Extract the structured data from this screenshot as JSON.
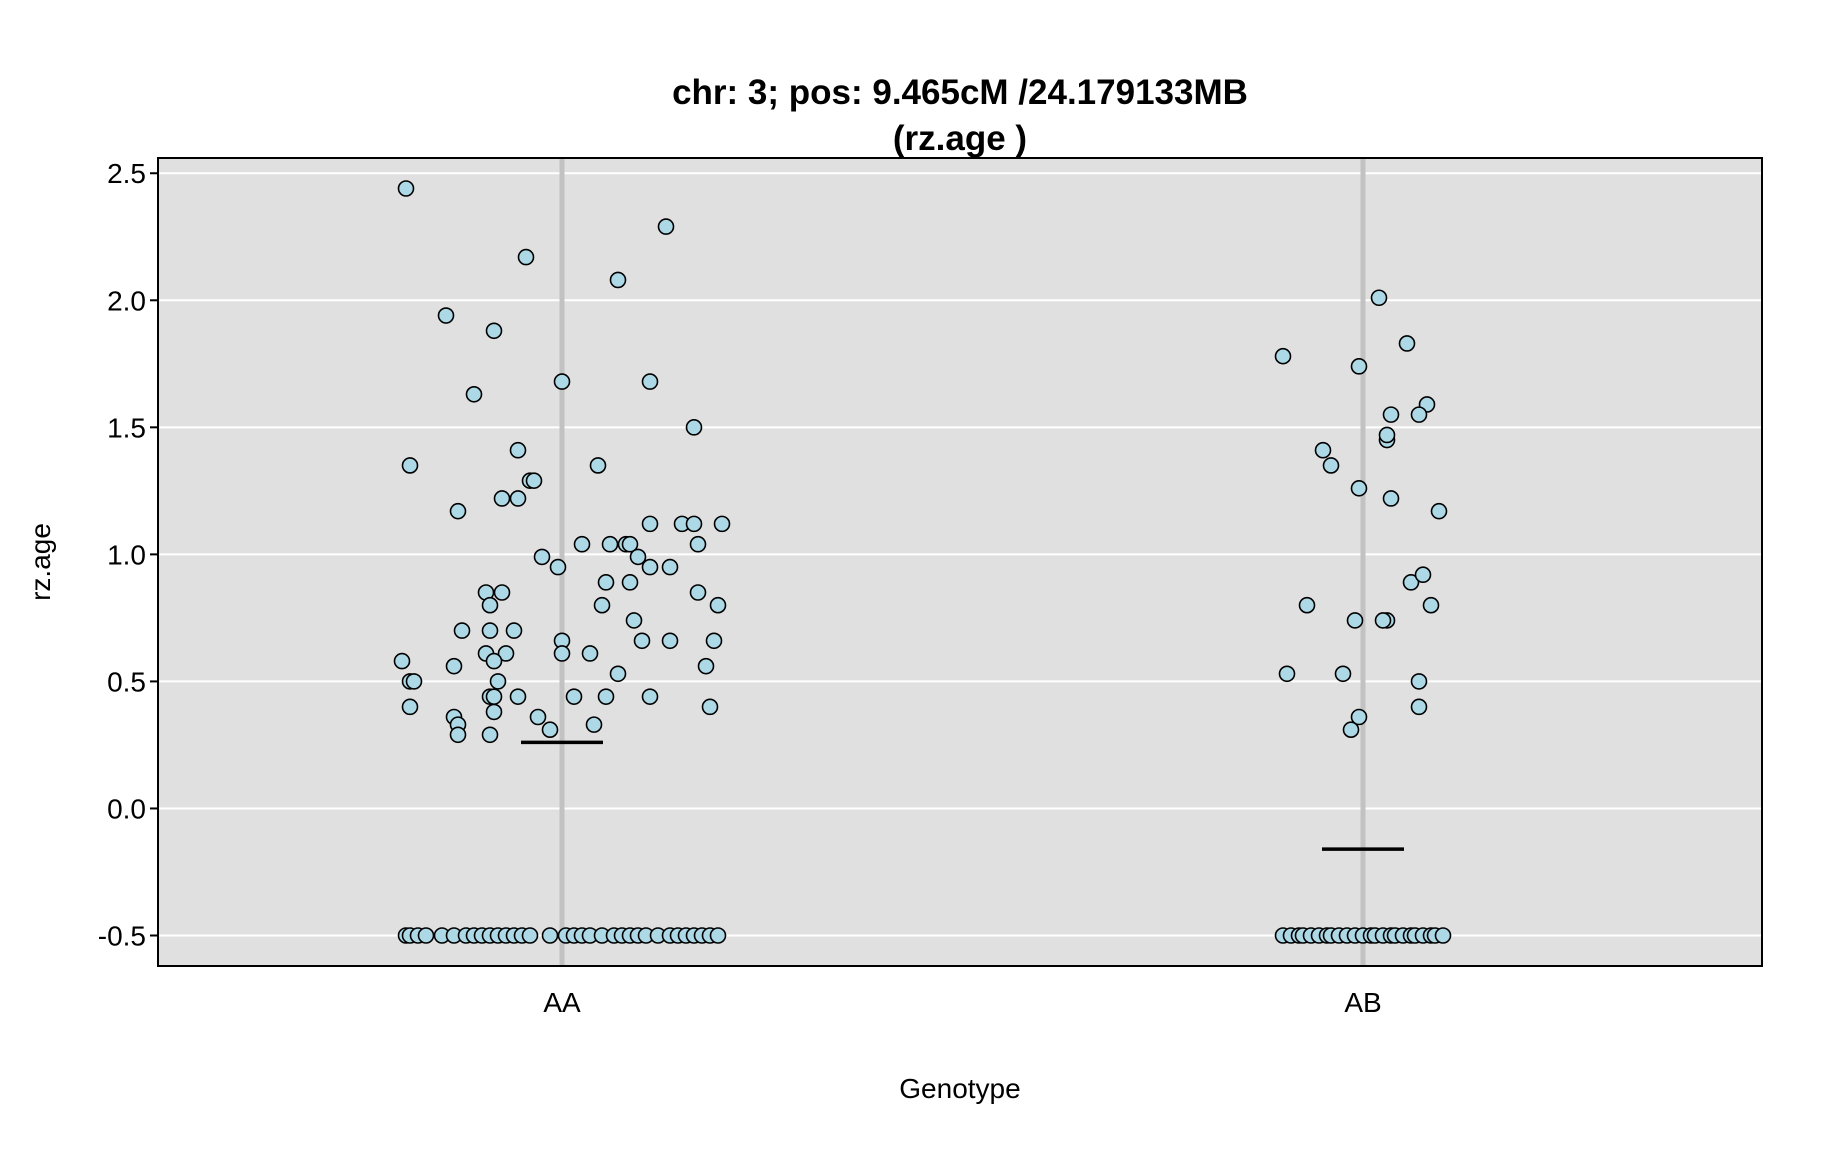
{
  "chart_data": {
    "type": "scatter",
    "title_line1": "chr: 3; pos: 9.465cM /24.179133MB",
    "title_line2": "(rz.age )",
    "xlabel": "Genotype",
    "ylabel": "rz.age",
    "categories": [
      "AA",
      "AB"
    ],
    "ylim": [
      -0.62,
      2.56
    ],
    "yticks": [
      "-0.5",
      "0.0",
      "0.5",
      "1.0",
      "1.5",
      "2.0",
      "2.5"
    ],
    "ytick_values": [
      -0.5,
      0.0,
      0.5,
      1.0,
      1.5,
      2.0,
      2.5
    ],
    "grid": true,
    "colors": {
      "panel": "#e0e0e0",
      "point_fill": "#add8e6",
      "point_edge": "#000000",
      "category_line": "#c2c2c2",
      "grid": "#ffffff"
    },
    "means": [
      0.26,
      -0.16
    ],
    "groups": [
      {
        "name": "AA",
        "points": [
          [
            -0.39,
            2.44
          ],
          [
            -0.09,
            2.17
          ],
          [
            0.26,
            2.29
          ],
          [
            0.14,
            2.08
          ],
          [
            -0.29,
            1.94
          ],
          [
            -0.17,
            1.88
          ],
          [
            -0.22,
            1.63
          ],
          [
            0.0,
            1.68
          ],
          [
            0.22,
            1.68
          ],
          [
            -0.38,
            1.35
          ],
          [
            0.09,
            1.35
          ],
          [
            0.33,
            1.5
          ],
          [
            -0.11,
            1.41
          ],
          [
            -0.08,
            1.29
          ],
          [
            -0.07,
            1.29
          ],
          [
            -0.15,
            1.22
          ],
          [
            -0.11,
            1.22
          ],
          [
            -0.26,
            1.17
          ],
          [
            0.22,
            1.12
          ],
          [
            0.3,
            1.12
          ],
          [
            0.33,
            1.12
          ],
          [
            0.4,
            1.12
          ],
          [
            0.05,
            1.04
          ],
          [
            0.12,
            1.04
          ],
          [
            0.16,
            1.04
          ],
          [
            0.17,
            1.04
          ],
          [
            0.34,
            1.04
          ],
          [
            -0.05,
            0.99
          ],
          [
            0.19,
            0.99
          ],
          [
            -0.01,
            0.95
          ],
          [
            0.22,
            0.95
          ],
          [
            0.27,
            0.95
          ],
          [
            0.11,
            0.89
          ],
          [
            0.17,
            0.89
          ],
          [
            -0.19,
            0.85
          ],
          [
            -0.15,
            0.85
          ],
          [
            0.34,
            0.85
          ],
          [
            -0.18,
            0.8
          ],
          [
            0.1,
            0.8
          ],
          [
            0.39,
            0.8
          ],
          [
            0.18,
            0.74
          ],
          [
            -0.25,
            0.7
          ],
          [
            -0.18,
            0.7
          ],
          [
            -0.12,
            0.7
          ],
          [
            0.0,
            0.66
          ],
          [
            0.2,
            0.66
          ],
          [
            0.27,
            0.66
          ],
          [
            0.38,
            0.66
          ],
          [
            -0.19,
            0.61
          ],
          [
            -0.14,
            0.61
          ],
          [
            0.0,
            0.61
          ],
          [
            0.07,
            0.61
          ],
          [
            -0.4,
            0.58
          ],
          [
            -0.17,
            0.58
          ],
          [
            -0.27,
            0.56
          ],
          [
            0.36,
            0.56
          ],
          [
            0.14,
            0.53
          ],
          [
            -0.38,
            0.5
          ],
          [
            -0.37,
            0.5
          ],
          [
            -0.16,
            0.5
          ],
          [
            -0.18,
            0.44
          ],
          [
            -0.17,
            0.44
          ],
          [
            -0.11,
            0.44
          ],
          [
            0.03,
            0.44
          ],
          [
            0.11,
            0.44
          ],
          [
            0.22,
            0.44
          ],
          [
            -0.38,
            0.4
          ],
          [
            0.37,
            0.4
          ],
          [
            -0.17,
            0.38
          ],
          [
            -0.27,
            0.36
          ],
          [
            -0.06,
            0.36
          ],
          [
            -0.26,
            0.33
          ],
          [
            0.08,
            0.33
          ],
          [
            -0.03,
            0.31
          ],
          [
            -0.26,
            0.29
          ],
          [
            -0.18,
            0.29
          ],
          [
            -0.39,
            -0.5
          ],
          [
            -0.38,
            -0.5
          ],
          [
            -0.36,
            -0.5
          ],
          [
            -0.34,
            -0.5
          ],
          [
            -0.3,
            -0.5
          ],
          [
            -0.27,
            -0.5
          ],
          [
            -0.24,
            -0.5
          ],
          [
            -0.22,
            -0.5
          ],
          [
            -0.2,
            -0.5
          ],
          [
            -0.18,
            -0.5
          ],
          [
            -0.16,
            -0.5
          ],
          [
            -0.14,
            -0.5
          ],
          [
            -0.12,
            -0.5
          ],
          [
            -0.1,
            -0.5
          ],
          [
            -0.08,
            -0.5
          ],
          [
            -0.03,
            -0.5
          ],
          [
            0.01,
            -0.5
          ],
          [
            0.03,
            -0.5
          ],
          [
            0.05,
            -0.5
          ],
          [
            0.07,
            -0.5
          ],
          [
            0.1,
            -0.5
          ],
          [
            0.13,
            -0.5
          ],
          [
            0.15,
            -0.5
          ],
          [
            0.17,
            -0.5
          ],
          [
            0.19,
            -0.5
          ],
          [
            0.21,
            -0.5
          ],
          [
            0.24,
            -0.5
          ],
          [
            0.27,
            -0.5
          ],
          [
            0.29,
            -0.5
          ],
          [
            0.31,
            -0.5
          ],
          [
            0.33,
            -0.5
          ],
          [
            0.35,
            -0.5
          ],
          [
            0.37,
            -0.5
          ],
          [
            0.39,
            -0.5
          ]
        ]
      },
      {
        "name": "AB",
        "points": [
          [
            0.04,
            2.01
          ],
          [
            -0.2,
            1.78
          ],
          [
            0.11,
            1.83
          ],
          [
            -0.01,
            1.74
          ],
          [
            0.16,
            1.59
          ],
          [
            0.14,
            1.55
          ],
          [
            0.07,
            1.55
          ],
          [
            0.06,
            1.45
          ],
          [
            0.06,
            1.47
          ],
          [
            -0.1,
            1.41
          ],
          [
            -0.08,
            1.35
          ],
          [
            -0.01,
            1.26
          ],
          [
            0.07,
            1.22
          ],
          [
            0.19,
            1.17
          ],
          [
            0.12,
            0.89
          ],
          [
            0.15,
            0.92
          ],
          [
            -0.14,
            0.8
          ],
          [
            0.17,
            0.8
          ],
          [
            -0.02,
            0.74
          ],
          [
            0.06,
            0.74
          ],
          [
            0.05,
            0.74
          ],
          [
            -0.19,
            0.53
          ],
          [
            -0.05,
            0.53
          ],
          [
            0.14,
            0.5
          ],
          [
            0.14,
            0.4
          ],
          [
            -0.01,
            0.36
          ],
          [
            -0.03,
            0.31
          ],
          [
            -0.2,
            -0.5
          ],
          [
            -0.18,
            -0.5
          ],
          [
            -0.16,
            -0.5
          ],
          [
            -0.15,
            -0.5
          ],
          [
            -0.13,
            -0.5
          ],
          [
            -0.11,
            -0.5
          ],
          [
            -0.09,
            -0.5
          ],
          [
            -0.08,
            -0.5
          ],
          [
            -0.06,
            -0.5
          ],
          [
            -0.04,
            -0.5
          ],
          [
            -0.02,
            -0.5
          ],
          [
            0.0,
            -0.5
          ],
          [
            0.02,
            -0.5
          ],
          [
            0.03,
            -0.5
          ],
          [
            0.05,
            -0.5
          ],
          [
            0.07,
            -0.5
          ],
          [
            0.08,
            -0.5
          ],
          [
            0.1,
            -0.5
          ],
          [
            0.12,
            -0.5
          ],
          [
            0.13,
            -0.5
          ],
          [
            0.15,
            -0.5
          ],
          [
            0.17,
            -0.5
          ],
          [
            0.18,
            -0.5
          ],
          [
            0.2,
            -0.5
          ]
        ]
      }
    ]
  }
}
